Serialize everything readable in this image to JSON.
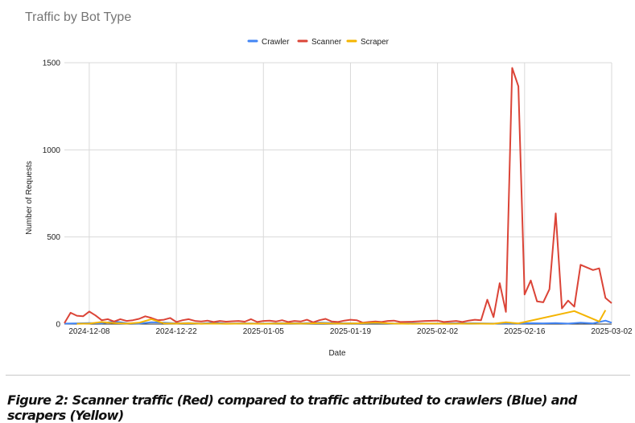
{
  "caption": "Figure 2: Scanner traffic (Red) compared to traffic attributed to crawlers (Blue) and scrapers (Yellow)",
  "chart_data": {
    "type": "line",
    "title": "Traffic by Bot Type",
    "xlabel": "Date",
    "ylabel": "Number of Requests",
    "ylim": [
      0,
      1500
    ],
    "yticks": [
      0,
      500,
      1000,
      1500
    ],
    "xlim": [
      "2024-12-04",
      "2025-03-02"
    ],
    "xticks": [
      "2024-12-08",
      "2024-12-22",
      "2025-01-05",
      "2025-01-19",
      "2025-02-02",
      "2025-02-16",
      "2025-03-02"
    ],
    "grid": true,
    "legend_position": "top-center",
    "series": [
      {
        "name": "Crawler",
        "color": "#4285f4",
        "points": [
          [
            "2024-12-04",
            3
          ],
          [
            "2024-12-06",
            4
          ],
          [
            "2024-12-08",
            6
          ],
          [
            "2024-12-10",
            4
          ],
          [
            "2024-12-12",
            15
          ],
          [
            "2024-12-14",
            5
          ],
          [
            "2024-12-16",
            3
          ],
          [
            "2024-12-18",
            10
          ],
          [
            "2024-12-20",
            8
          ],
          [
            "2024-12-22",
            4
          ],
          [
            "2024-12-24",
            6
          ],
          [
            "2024-12-26",
            3
          ],
          [
            "2024-12-28",
            8
          ],
          [
            "2024-12-30",
            3
          ],
          [
            "2025-01-02",
            4
          ],
          [
            "2025-01-05",
            3
          ],
          [
            "2025-01-08",
            5
          ],
          [
            "2025-01-11",
            4
          ],
          [
            "2025-01-14",
            8
          ],
          [
            "2025-01-17",
            5
          ],
          [
            "2025-01-20",
            4
          ],
          [
            "2025-01-23",
            6
          ],
          [
            "2025-01-26",
            3
          ],
          [
            "2025-01-29",
            4
          ],
          [
            "2025-02-01",
            3
          ],
          [
            "2025-02-04",
            4
          ],
          [
            "2025-02-07",
            5
          ],
          [
            "2025-02-09",
            4
          ],
          [
            "2025-02-11",
            3
          ],
          [
            "2025-02-13",
            4
          ],
          [
            "2025-02-15",
            3
          ],
          [
            "2025-02-17",
            5
          ],
          [
            "2025-02-19",
            4
          ],
          [
            "2025-02-21",
            6
          ],
          [
            "2025-02-23",
            3
          ],
          [
            "2025-02-25",
            8
          ],
          [
            "2025-02-27",
            4
          ],
          [
            "2025-03-01",
            20
          ],
          [
            "2025-03-02",
            8
          ]
        ]
      },
      {
        "name": "Scanner",
        "color": "#db4437",
        "points": [
          [
            "2024-12-04",
            5
          ],
          [
            "2024-12-05",
            65
          ],
          [
            "2024-12-06",
            48
          ],
          [
            "2024-12-07",
            45
          ],
          [
            "2024-12-08",
            72
          ],
          [
            "2024-12-09",
            50
          ],
          [
            "2024-12-10",
            22
          ],
          [
            "2024-12-11",
            28
          ],
          [
            "2024-12-12",
            15
          ],
          [
            "2024-12-13",
            28
          ],
          [
            "2024-12-14",
            18
          ],
          [
            "2024-12-15",
            22
          ],
          [
            "2024-12-16",
            30
          ],
          [
            "2024-12-17",
            45
          ],
          [
            "2024-12-18",
            35
          ],
          [
            "2024-12-19",
            22
          ],
          [
            "2024-12-20",
            25
          ],
          [
            "2024-12-21",
            35
          ],
          [
            "2024-12-22",
            12
          ],
          [
            "2024-12-23",
            22
          ],
          [
            "2024-12-24",
            28
          ],
          [
            "2024-12-25",
            18
          ],
          [
            "2024-12-26",
            15
          ],
          [
            "2024-12-27",
            20
          ],
          [
            "2024-12-28",
            12
          ],
          [
            "2024-12-29",
            18
          ],
          [
            "2024-12-30",
            14
          ],
          [
            "2024-12-31",
            16
          ],
          [
            "2025-01-01",
            18
          ],
          [
            "2025-01-02",
            14
          ],
          [
            "2025-01-03",
            28
          ],
          [
            "2025-01-04",
            12
          ],
          [
            "2025-01-05",
            18
          ],
          [
            "2025-01-06",
            20
          ],
          [
            "2025-01-07",
            15
          ],
          [
            "2025-01-08",
            22
          ],
          [
            "2025-01-09",
            12
          ],
          [
            "2025-01-10",
            18
          ],
          [
            "2025-01-11",
            15
          ],
          [
            "2025-01-12",
            25
          ],
          [
            "2025-01-13",
            10
          ],
          [
            "2025-01-14",
            22
          ],
          [
            "2025-01-15",
            30
          ],
          [
            "2025-01-16",
            15
          ],
          [
            "2025-01-17",
            12
          ],
          [
            "2025-01-18",
            20
          ],
          [
            "2025-01-19",
            25
          ],
          [
            "2025-01-20",
            22
          ],
          [
            "2025-01-21",
            8
          ],
          [
            "2025-01-22",
            12
          ],
          [
            "2025-01-23",
            15
          ],
          [
            "2025-01-24",
            12
          ],
          [
            "2025-01-25",
            18
          ],
          [
            "2025-01-26",
            20
          ],
          [
            "2025-01-27",
            12
          ],
          [
            "2025-01-29",
            14
          ],
          [
            "2025-01-31",
            18
          ],
          [
            "2025-02-02",
            20
          ],
          [
            "2025-02-03",
            12
          ],
          [
            "2025-02-04",
            15
          ],
          [
            "2025-02-05",
            18
          ],
          [
            "2025-02-06",
            12
          ],
          [
            "2025-02-07",
            20
          ],
          [
            "2025-02-08",
            25
          ],
          [
            "2025-02-09",
            22
          ],
          [
            "2025-02-10",
            140
          ],
          [
            "2025-02-11",
            40
          ],
          [
            "2025-02-12",
            235
          ],
          [
            "2025-02-13",
            70
          ],
          [
            "2025-02-14",
            1470
          ],
          [
            "2025-02-15",
            1365
          ],
          [
            "2025-02-16",
            170
          ],
          [
            "2025-02-17",
            250
          ],
          [
            "2025-02-18",
            130
          ],
          [
            "2025-02-19",
            125
          ],
          [
            "2025-02-20",
            200
          ],
          [
            "2025-02-21",
            635
          ],
          [
            "2025-02-22",
            90
          ],
          [
            "2025-02-23",
            135
          ],
          [
            "2025-02-24",
            100
          ],
          [
            "2025-02-25",
            340
          ],
          [
            "2025-02-27",
            310
          ],
          [
            "2025-02-28",
            320
          ],
          [
            "2025-03-01",
            150
          ],
          [
            "2025-03-02",
            120
          ]
        ]
      },
      {
        "name": "Scraper",
        "color": "#f4b400",
        "points": [
          [
            "2024-12-06",
            2
          ],
          [
            "2024-12-08",
            3
          ],
          [
            "2024-12-10",
            12
          ],
          [
            "2024-12-12",
            6
          ],
          [
            "2024-12-14",
            3
          ],
          [
            "2024-12-16",
            8
          ],
          [
            "2024-12-18",
            28
          ],
          [
            "2024-12-20",
            4
          ],
          [
            "2024-12-22",
            3
          ],
          [
            "2024-12-24",
            5
          ],
          [
            "2024-12-26",
            2
          ],
          [
            "2024-12-28",
            3
          ],
          [
            "2024-12-30",
            2
          ],
          [
            "2025-01-02",
            3
          ],
          [
            "2025-01-05",
            2
          ],
          [
            "2025-01-08",
            4
          ],
          [
            "2025-01-11",
            3
          ],
          [
            "2025-01-14",
            5
          ],
          [
            "2025-01-17",
            3
          ],
          [
            "2025-01-20",
            4
          ],
          [
            "2025-01-23",
            8
          ],
          [
            "2025-01-26",
            3
          ],
          [
            "2025-01-29",
            2
          ],
          [
            "2025-02-01",
            3
          ],
          [
            "2025-02-04",
            2
          ],
          [
            "2025-02-07",
            3
          ],
          [
            "2025-02-11",
            2
          ],
          [
            "2025-02-13",
            10
          ],
          [
            "2025-02-15",
            4
          ],
          [
            "2025-02-24",
            75
          ],
          [
            "2025-02-28",
            15
          ],
          [
            "2025-03-01",
            80
          ]
        ]
      }
    ]
  }
}
